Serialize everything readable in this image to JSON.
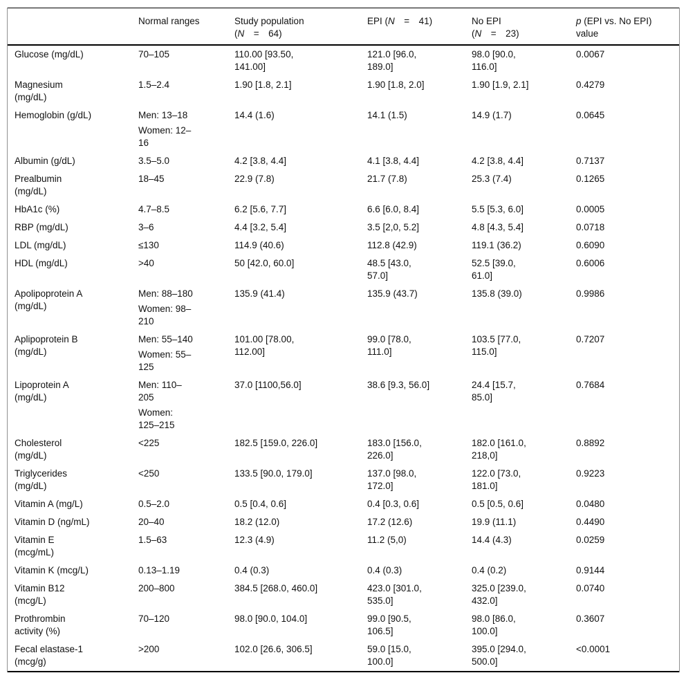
{
  "table": {
    "header": [
      {
        "name": "parameter",
        "lines": []
      },
      {
        "name": "normal-ranges",
        "lines": [
          [
            {
              "t": "Normal ranges"
            }
          ]
        ]
      },
      {
        "name": "study-population",
        "lines": [
          [
            {
              "t": "Study population"
            }
          ],
          [
            {
              "t": "("
            },
            {
              "t": "N",
              "i": 1
            },
            {
              "t": "  =  64)"
            }
          ]
        ]
      },
      {
        "name": "epi",
        "lines": [
          [
            {
              "t": "EPI ("
            },
            {
              "t": "N",
              "i": 1
            },
            {
              "t": "  =  41)"
            }
          ]
        ]
      },
      {
        "name": "no-epi",
        "lines": [
          [
            {
              "t": "No EPI"
            }
          ],
          [
            {
              "t": "("
            },
            {
              "t": "N",
              "i": 1
            },
            {
              "t": "  =  23)"
            }
          ]
        ]
      },
      {
        "name": "p-value",
        "lines": [
          [
            {
              "t": "p",
              "i": 1
            },
            {
              "t": " (EPI vs. No EPI)"
            }
          ],
          [
            {
              "t": "value"
            }
          ]
        ]
      }
    ],
    "rows": [
      {
        "label": "Glucose (mg/dL)",
        "normal": "70–105",
        "study": "110.00 [93.50,\n141.00]",
        "epi": "121.0 [96.0,\n189.0]",
        "no_epi": "98.0 [90.0,\n116.0]",
        "p": "0.0067"
      },
      {
        "label": "Magnesium\n(mg/dL)",
        "normal": "1.5–2.4",
        "study": "1.90 [1.8, 2.1]",
        "epi": "1.90 [1.8, 2.0]",
        "no_epi": "1.90 [1.9, 2.1]",
        "p": "0.4279"
      },
      {
        "label": "Hemoglobin (g/dL)",
        "normal": "Men: 13–18\n\nWomen: 12–\n16",
        "study": "14.4 (1.6)",
        "epi": "14.1 (1.5)",
        "no_epi": "14.9 (1.7)",
        "p": "0.0645"
      },
      {
        "label": "Albumin (g/dL)",
        "normal": "3.5–5.0",
        "study": "4.2 [3.8, 4.4]",
        "epi": "4.1 [3.8, 4.4]",
        "no_epi": "4.2 [3.8, 4.4]",
        "p": "0.7137"
      },
      {
        "label": "Prealbumin\n(mg/dL)",
        "normal": "18–45",
        "study": "22.9 (7.8)",
        "epi": "21.7 (7.8)",
        "no_epi": "25.3 (7.4)",
        "p": "0.1265"
      },
      {
        "label": "HbA1c (%)",
        "normal": "4.7–8.5",
        "study": "6.2 [5.6, 7.7]",
        "epi": "6.6 [6.0, 8.4]",
        "no_epi": "5.5 [5.3, 6.0]",
        "p": "0.0005"
      },
      {
        "label": "RBP (mg/dL)",
        "normal": "3–6",
        "study": "4.4 [3.2, 5.4]",
        "epi": "3.5 [2,0, 5.2]",
        "no_epi": "4.8 [4.3, 5.4]",
        "p": "0.0718"
      },
      {
        "label": "LDL (mg/dL)",
        "normal": "≤130",
        "study": "114.9 (40.6)",
        "epi": "112.8 (42.9)",
        "no_epi": "119.1 (36.2)",
        "p": "0.6090"
      },
      {
        "label": "HDL (mg/dL)",
        "normal": ">40",
        "study": "50 [42.0, 60.0]",
        "epi": "48.5 [43.0,\n57.0]",
        "no_epi": "52.5 [39.0,\n61.0]",
        "p": "0.6006"
      },
      {
        "label": "Apolipoprotein A\n(mg/dL)",
        "normal": "Men: 88–180\n\nWomen: 98–\n210",
        "study": "135.9 (41.4)",
        "epi": "135.9 (43.7)",
        "no_epi": "135.8 (39.0)",
        "p": "0.9986"
      },
      {
        "label": "Aplipoprotein B\n(mg/dL)",
        "normal": "Men: 55–140\n\nWomen: 55–\n125",
        "study": "101.00 [78.00,\n112.00]",
        "epi": "99.0 [78.0,\n111.0]",
        "no_epi": "103.5 [77.0,\n115.0]",
        "p": "0.7207"
      },
      {
        "label": "Lipoprotein A\n(mg/dL)",
        "normal": "Men: 110–\n205\n\nWomen:\n125–215",
        "study": "37.0 [1100,56.0]",
        "epi": "38.6 [9.3, 56.0]",
        "no_epi": "24.4 [15.7,\n85.0]",
        "p": "0.7684"
      },
      {
        "label": "Cholesterol\n(mg/dL)",
        "normal": "<225",
        "study": "182.5 [159.0, 226.0]",
        "epi": "183.0 [156.0,\n226.0]",
        "no_epi": "182.0 [161.0,\n218,0]",
        "p": "0.8892"
      },
      {
        "label": "Triglycerides\n(mg/dL)",
        "normal": "<250",
        "study": "133.5 [90.0, 179.0]",
        "epi": "137.0 [98.0,\n172.0]",
        "no_epi": "122.0 [73.0,\n181.0]",
        "p": "0.9223"
      },
      {
        "label": "Vitamin A (mg/L)",
        "normal": "0.5–2.0",
        "study": "0.5 [0.4, 0.6]",
        "epi": "0.4 [0.3, 0.6]",
        "no_epi": "0.5 [0.5, 0.6]",
        "p": "0.0480"
      },
      {
        "label": "Vitamin D (ng/mL)",
        "normal": "20–40",
        "study": "18.2 (12.0)",
        "epi": "17.2 (12.6)",
        "no_epi": "19.9 (11.1)",
        "p": "0.4490"
      },
      {
        "label": "Vitamin E\n(mcg/mL)",
        "normal": "1.5–63",
        "study": "12.3 (4.9)",
        "epi": "11.2 (5,0)",
        "no_epi": "14.4 (4.3)",
        "p": "0.0259"
      },
      {
        "label": "Vitamin K (mcg/L)",
        "normal": "0.13–1.19",
        "study": "0.4 (0.3)",
        "epi": "0.4 (0.3)",
        "no_epi": "0.4 (0.2)",
        "p": "0.9144"
      },
      {
        "label": "Vitamin B12\n(mcg/L)",
        "normal": "200–800",
        "study": "384.5 [268.0, 460.0]",
        "epi": "423.0 [301.0,\n535.0]",
        "no_epi": "325.0 [239.0,\n432.0]",
        "p": "0.0740"
      },
      {
        "label": "Prothrombin\nactivity (%)",
        "normal": "70–120",
        "study": "98.0 [90.0, 104.0]",
        "epi": "99.0 [90.5,\n106.5]",
        "no_epi": "98.0 [86.0,\n100.0]",
        "p": "0.3607"
      },
      {
        "label": "Fecal elastase-1\n(mcg/g)",
        "normal": ">200",
        "study": "102.0 [26.6, 306.5]",
        "epi": "59.0 [15.0,\n100.0]",
        "no_epi": "395.0 [294.0,\n500.0]",
        "p": "<0.0001"
      }
    ]
  }
}
